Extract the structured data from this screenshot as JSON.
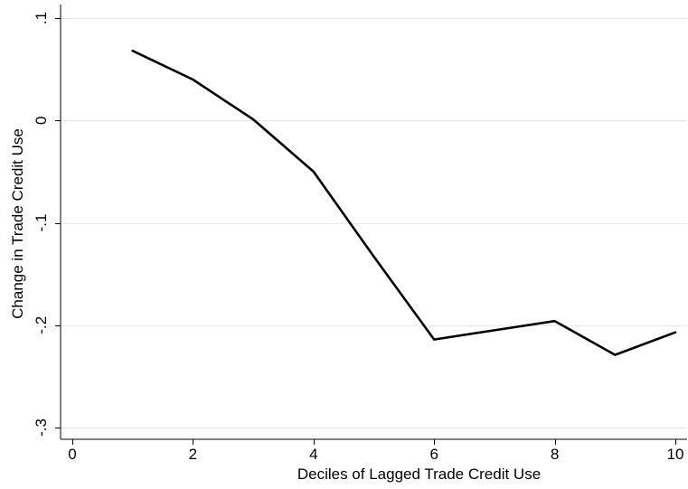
{
  "chart_data": {
    "type": "line",
    "title": "",
    "xlabel": "Deciles of Lagged Trade Credit Use",
    "ylabel": "Change in Trade Credit Use",
    "xlim": [
      0,
      10
    ],
    "ylim": [
      -0.3,
      0.1
    ],
    "x_ticks": [
      0,
      2,
      4,
      6,
      8,
      10
    ],
    "x_tick_labels": [
      "0",
      "2",
      "4",
      "6",
      "8",
      "10"
    ],
    "y_ticks": [
      0.1,
      0,
      -0.1,
      -0.2,
      -0.3
    ],
    "y_tick_labels": [
      ".1",
      "0",
      "-.1",
      "-.2",
      "-.3"
    ],
    "grid": "horizontal",
    "legend": "none",
    "series": [
      {
        "color": "#000000",
        "x": [
          1,
          2,
          3,
          4,
          5,
          6,
          7,
          8,
          9,
          10
        ],
        "y": [
          0.068,
          0.04,
          0.001,
          -0.05,
          -0.133,
          -0.214,
          -0.205,
          -0.196,
          -0.229,
          -0.207
        ]
      }
    ]
  }
}
